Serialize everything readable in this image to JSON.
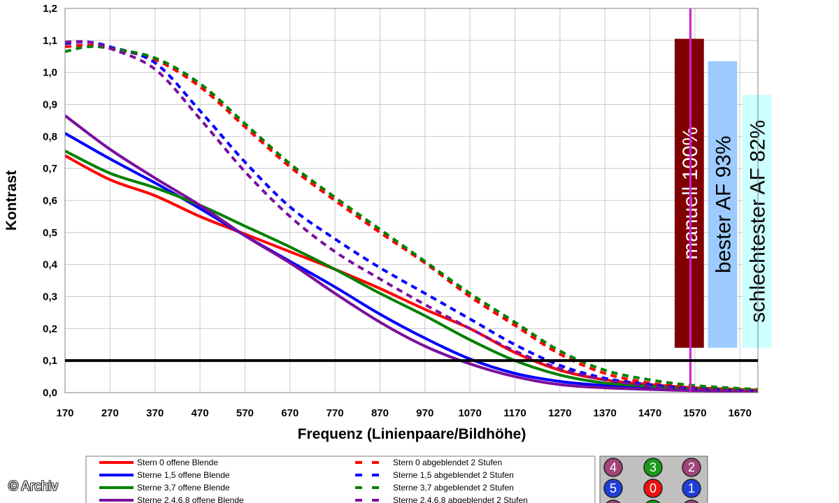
{
  "copyright": "© Archiv",
  "chart_data": {
    "type": "line",
    "xlabel": "Frequenz (Linienpaare/Bildhöhe)",
    "ylabel": "Kontrast",
    "xlim": [
      170,
      1710
    ],
    "ylim": [
      0.0,
      1.2
    ],
    "x_ticks": [
      "170",
      "270",
      "370",
      "470",
      "570",
      "670",
      "770",
      "870",
      "970",
      "1070",
      "1170",
      "1270",
      "1370",
      "1470",
      "1570",
      "1670"
    ],
    "y_ticks": [
      "0,0",
      "0,1",
      "0,2",
      "0,3",
      "0,4",
      "0,5",
      "0,6",
      "0,7",
      "0,8",
      "0,9",
      "1,0",
      "1,1",
      "1,2"
    ],
    "grid": true,
    "threshold_line": 0.1,
    "marker_line_x": 1560,
    "series": [
      {
        "name": "Stern 0 offene Blende",
        "color": "#ff0000",
        "dashed": false,
        "x": [
          170,
          270,
          370,
          470,
          570,
          670,
          770,
          870,
          970,
          1070,
          1170,
          1270,
          1370,
          1470,
          1570,
          1710
        ],
        "y": [
          0.74,
          0.665,
          0.615,
          0.55,
          0.495,
          0.44,
          0.385,
          0.325,
          0.26,
          0.2,
          0.125,
          0.07,
          0.04,
          0.025,
          0.015,
          0.008
        ]
      },
      {
        "name": "Sterne 1,5 offene Blende",
        "color": "#0000ff",
        "dashed": false,
        "x": [
          170,
          270,
          370,
          470,
          570,
          670,
          770,
          870,
          970,
          1070,
          1170,
          1270,
          1370,
          1470,
          1570,
          1710
        ],
        "y": [
          0.81,
          0.73,
          0.655,
          0.575,
          0.49,
          0.41,
          0.33,
          0.245,
          0.17,
          0.105,
          0.06,
          0.035,
          0.022,
          0.015,
          0.01,
          0.005
        ]
      },
      {
        "name": "Sterne 3,7 offene Blende",
        "color": "#008000",
        "dashed": false,
        "x": [
          170,
          270,
          370,
          470,
          570,
          670,
          770,
          870,
          970,
          1070,
          1170,
          1270,
          1370,
          1470,
          1570,
          1710
        ],
        "y": [
          0.755,
          0.685,
          0.64,
          0.585,
          0.52,
          0.455,
          0.385,
          0.31,
          0.24,
          0.165,
          0.1,
          0.055,
          0.03,
          0.02,
          0.012,
          0.006
        ]
      },
      {
        "name": "Sterne 2,4,6,8 offene Blende",
        "color": "#7b0f9c",
        "dashed": false,
        "x": [
          170,
          270,
          370,
          470,
          570,
          670,
          770,
          870,
          970,
          1070,
          1170,
          1270,
          1370,
          1470,
          1570,
          1710
        ],
        "y": [
          0.865,
          0.76,
          0.67,
          0.585,
          0.49,
          0.405,
          0.31,
          0.22,
          0.145,
          0.09,
          0.05,
          0.025,
          0.015,
          0.01,
          0.006,
          0.004
        ]
      },
      {
        "name": "Stern 0 abgeblendet 2 Stufen",
        "color": "#ff0000",
        "dashed": true,
        "x": [
          170,
          220,
          270,
          370,
          470,
          570,
          670,
          770,
          870,
          970,
          1070,
          1170,
          1270,
          1370,
          1470,
          1570,
          1710
        ],
        "y": [
          1.08,
          1.085,
          1.075,
          1.04,
          0.955,
          0.83,
          0.705,
          0.6,
          0.5,
          0.405,
          0.3,
          0.21,
          0.12,
          0.06,
          0.03,
          0.015,
          0.006
        ]
      },
      {
        "name": "Sterne 1,5 abgeblendet 2 Stufen",
        "color": "#0000ff",
        "dashed": true,
        "x": [
          170,
          220,
          270,
          370,
          470,
          570,
          670,
          770,
          870,
          970,
          1070,
          1170,
          1270,
          1370,
          1470,
          1570,
          1710
        ],
        "y": [
          1.09,
          1.095,
          1.08,
          1.03,
          0.88,
          0.72,
          0.58,
          0.48,
          0.39,
          0.31,
          0.23,
          0.15,
          0.085,
          0.045,
          0.025,
          0.012,
          0.005
        ]
      },
      {
        "name": "Sterne 3,7 abgeblendet 2 Stufen",
        "color": "#008000",
        "dashed": true,
        "x": [
          170,
          220,
          270,
          370,
          470,
          570,
          670,
          770,
          870,
          970,
          1070,
          1170,
          1270,
          1370,
          1470,
          1570,
          1710
        ],
        "y": [
          1.065,
          1.08,
          1.075,
          1.045,
          0.965,
          0.84,
          0.715,
          0.61,
          0.51,
          0.41,
          0.31,
          0.22,
          0.13,
          0.07,
          0.04,
          0.022,
          0.01
        ]
      },
      {
        "name": "Sterne 2,4,6,8 abgeblendet 2 Stufen",
        "color": "#7b0f9c",
        "dashed": true,
        "x": [
          170,
          220,
          270,
          370,
          470,
          570,
          670,
          770,
          870,
          970,
          1070,
          1170,
          1270,
          1370,
          1470,
          1570,
          1710
        ],
        "y": [
          1.095,
          1.095,
          1.075,
          1.01,
          0.855,
          0.69,
          0.55,
          0.44,
          0.355,
          0.275,
          0.2,
          0.13,
          0.075,
          0.04,
          0.02,
          0.01,
          0.004
        ]
      }
    ],
    "bars": [
      {
        "label": "manuell 100%",
        "value": 1.105,
        "x_start": 1525,
        "x_end": 1590,
        "bottom": 0.14,
        "fill": "#800000",
        "text_color": "#ffffff"
      },
      {
        "label": "bester AF 93%",
        "value": 1.035,
        "x_start": 1599,
        "x_end": 1664,
        "bottom": 0.14,
        "fill": "#9dcbff",
        "text_color": "#000000"
      },
      {
        "label": "schlechtester AF 82%",
        "value": 0.93,
        "x_start": 1675,
        "x_end": 1740,
        "bottom": 0.14,
        "fill": "#ccffff",
        "text_color": "#000000"
      }
    ],
    "legend": {
      "left": [
        "Stern 0 offene Blende",
        "Sterne 1,5 offene Blende",
        "Sterne 3,7 offene Blende",
        "Sterne 2,4,6,8 offene Blende"
      ],
      "right": [
        "Stern 0 abgeblendet 2 Stufen",
        "Sterne 1,5 abgeblendet 2 Stufen",
        "Sterne 3,7 abgeblendet 2 Stufen",
        "Sterne 2,4,6,8 abgeblendet 2 Stufen"
      ]
    },
    "star_badges": [
      {
        "label": "4",
        "color": "#a0447a"
      },
      {
        "label": "3",
        "color": "#1a9a1a"
      },
      {
        "label": "2",
        "color": "#a0447a"
      },
      {
        "label": "5",
        "color": "#1f3fd9"
      },
      {
        "label": "0",
        "color": "#ee1111"
      },
      {
        "label": "1",
        "color": "#1f3fd9"
      }
    ]
  }
}
